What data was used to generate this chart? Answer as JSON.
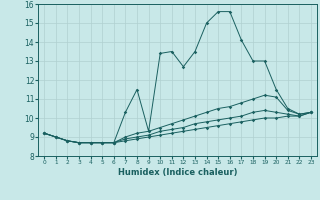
{
  "xlabel": "Humidex (Indice chaleur)",
  "ylabel": "",
  "bg_color": "#c8e8e8",
  "grid_color": "#b0d0d0",
  "line_color": "#1a6060",
  "xlim": [
    -0.5,
    23.5
  ],
  "ylim": [
    8,
    16
  ],
  "yticks": [
    8,
    9,
    10,
    11,
    12,
    13,
    14,
    15,
    16
  ],
  "xticks": [
    0,
    1,
    2,
    3,
    4,
    5,
    6,
    7,
    8,
    9,
    10,
    11,
    12,
    13,
    14,
    15,
    16,
    17,
    18,
    19,
    20,
    21,
    22,
    23
  ],
  "series": [
    {
      "x": [
        0,
        1,
        2,
        3,
        4,
        5,
        6,
        7,
        8,
        9,
        10,
        11,
        12,
        13,
        14,
        15,
        16,
        17,
        18,
        19,
        20,
        21,
        22,
        23
      ],
      "y": [
        9.2,
        9.0,
        8.8,
        8.7,
        8.7,
        8.7,
        8.7,
        10.3,
        11.5,
        9.3,
        13.4,
        13.5,
        12.7,
        13.5,
        15.0,
        15.6,
        15.6,
        14.1,
        13.0,
        13.0,
        11.5,
        10.5,
        10.2,
        10.3
      ]
    },
    {
      "x": [
        0,
        1,
        2,
        3,
        4,
        5,
        6,
        7,
        8,
        9,
        10,
        11,
        12,
        13,
        14,
        15,
        16,
        17,
        18,
        19,
        20,
        21,
        22,
        23
      ],
      "y": [
        9.2,
        9.0,
        8.8,
        8.7,
        8.7,
        8.7,
        8.7,
        9.0,
        9.2,
        9.3,
        9.5,
        9.7,
        9.9,
        10.1,
        10.3,
        10.5,
        10.6,
        10.8,
        11.0,
        11.2,
        11.1,
        10.4,
        10.2,
        10.3
      ]
    },
    {
      "x": [
        0,
        1,
        2,
        3,
        4,
        5,
        6,
        7,
        8,
        9,
        10,
        11,
        12,
        13,
        14,
        15,
        16,
        17,
        18,
        19,
        20,
        21,
        22,
        23
      ],
      "y": [
        9.2,
        9.0,
        8.8,
        8.7,
        8.7,
        8.7,
        8.7,
        8.9,
        9.0,
        9.1,
        9.3,
        9.4,
        9.5,
        9.7,
        9.8,
        9.9,
        10.0,
        10.1,
        10.3,
        10.4,
        10.3,
        10.2,
        10.1,
        10.3
      ]
    },
    {
      "x": [
        0,
        1,
        2,
        3,
        4,
        5,
        6,
        7,
        8,
        9,
        10,
        11,
        12,
        13,
        14,
        15,
        16,
        17,
        18,
        19,
        20,
        21,
        22,
        23
      ],
      "y": [
        9.2,
        9.0,
        8.8,
        8.7,
        8.7,
        8.7,
        8.7,
        8.8,
        8.9,
        9.0,
        9.1,
        9.2,
        9.3,
        9.4,
        9.5,
        9.6,
        9.7,
        9.8,
        9.9,
        10.0,
        10.0,
        10.1,
        10.1,
        10.3
      ]
    }
  ]
}
